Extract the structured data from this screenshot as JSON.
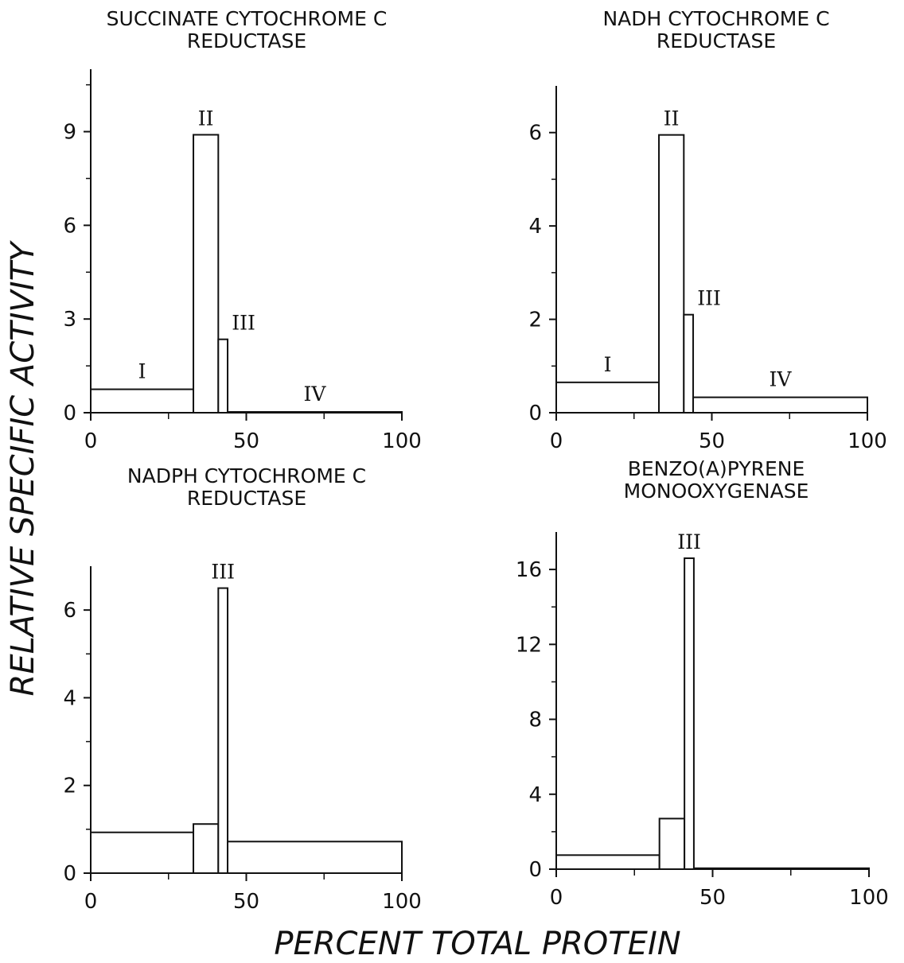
{
  "figure": {
    "ylabel": "RELATIVE SPECIFIC ACTIVITY",
    "xlabel": "PERCENT TOTAL PROTEIN"
  },
  "chart_data": [
    {
      "type": "bar",
      "title": [
        "SUCCINATE CYTOCHROME C",
        "REDUCTASE"
      ],
      "xlim": [
        0,
        100
      ],
      "ylim": [
        0,
        11
      ],
      "xticks": [
        0,
        50,
        100
      ],
      "xminor": [
        25,
        75
      ],
      "yticks": [
        0,
        3,
        6,
        9
      ],
      "yminor": [
        1.5,
        4.5,
        7.5,
        10.5
      ],
      "bars": [
        {
          "label": "I",
          "x0": 0,
          "x1": 33,
          "value": 0.75
        },
        {
          "label": "II",
          "x0": 33,
          "x1": 41,
          "value": 8.9
        },
        {
          "label": "III",
          "x0": 41,
          "x1": 44,
          "value": 2.35
        },
        {
          "label": "IV",
          "x0": 44,
          "x1": 100,
          "value": 0.02
        }
      ]
    },
    {
      "type": "bar",
      "title": [
        "NADH CYTOCHROME C",
        "REDUCTASE"
      ],
      "xlim": [
        0,
        100
      ],
      "ylim": [
        0,
        7
      ],
      "xticks": [
        0,
        50,
        100
      ],
      "xminor": [
        25,
        75
      ],
      "yticks": [
        0,
        2,
        4,
        6
      ],
      "yminor": [
        1,
        3,
        5
      ],
      "bars": [
        {
          "label": "I",
          "x0": 0,
          "x1": 33,
          "value": 0.65
        },
        {
          "label": "II",
          "x0": 33,
          "x1": 41,
          "value": 5.95
        },
        {
          "label": "III",
          "x0": 41,
          "x1": 44,
          "value": 2.1
        },
        {
          "label": "IV",
          "x0": 44,
          "x1": 100,
          "value": 0.33
        }
      ]
    },
    {
      "type": "bar",
      "title": [
        "NADPH CYTOCHROME C",
        "REDUCTASE"
      ],
      "xlim": [
        0,
        100
      ],
      "ylim": [
        0,
        7
      ],
      "xticks": [
        0,
        50,
        100
      ],
      "xminor": [
        25,
        75
      ],
      "yticks": [
        0,
        2,
        4,
        6
      ],
      "yminor": [
        1,
        3,
        5
      ],
      "bars": [
        {
          "label": "",
          "x0": 0,
          "x1": 33,
          "value": 0.93
        },
        {
          "label": "",
          "x0": 33,
          "x1": 41,
          "value": 1.12
        },
        {
          "label": "III",
          "x0": 41,
          "x1": 44,
          "value": 6.5
        },
        {
          "label": "",
          "x0": 44,
          "x1": 100,
          "value": 0.72
        }
      ]
    },
    {
      "type": "bar",
      "title": [
        "BENZO(A)PYRENE",
        "MONOOXYGENASE"
      ],
      "xlim": [
        0,
        100
      ],
      "ylim": [
        0,
        18
      ],
      "xticks": [
        0,
        50,
        100
      ],
      "xminor": [
        25,
        75
      ],
      "yticks": [
        0,
        4,
        8,
        12,
        16
      ],
      "yminor": [
        2,
        6,
        10,
        14
      ],
      "bars": [
        {
          "label": "",
          "x0": 0,
          "x1": 33,
          "value": 0.75
        },
        {
          "label": "",
          "x0": 33,
          "x1": 41,
          "value": 2.7
        },
        {
          "label": "III",
          "x0": 41,
          "x1": 44,
          "value": 16.6
        },
        {
          "label": "",
          "x0": 44,
          "x1": 100,
          "value": 0.05
        }
      ]
    }
  ]
}
